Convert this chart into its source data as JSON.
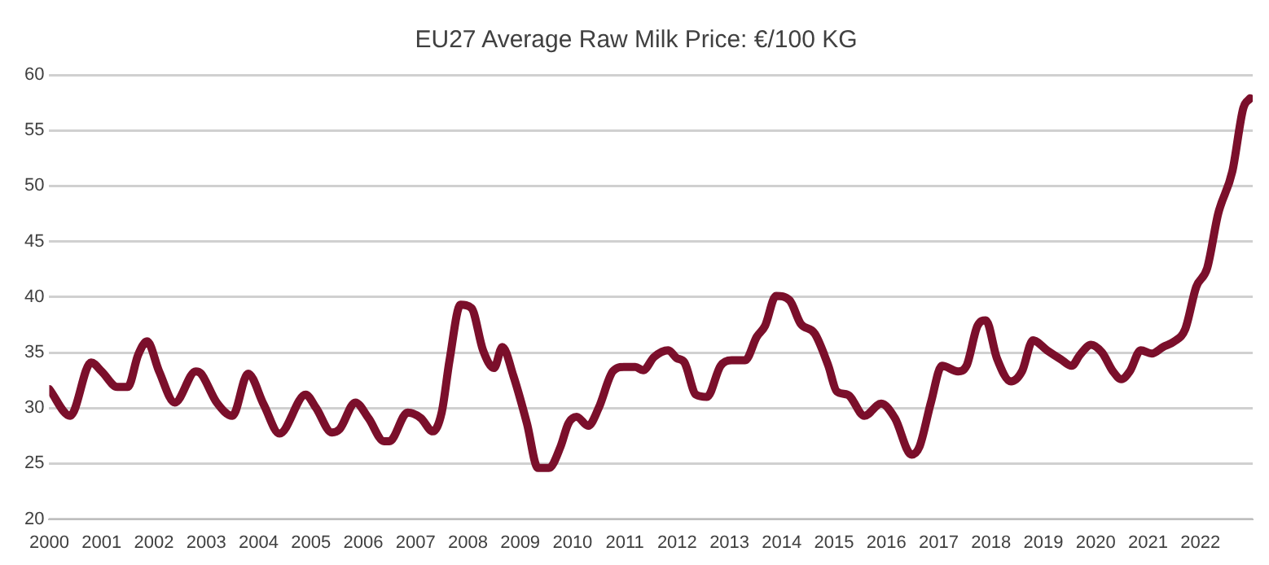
{
  "chart_data": {
    "type": "line",
    "title": "EU27 Average Raw Milk Price: €/100 KG",
    "x": [
      2000.0,
      2000.4,
      2000.8,
      2001.0,
      2001.3,
      2001.5,
      2001.7,
      2001.87,
      2002.1,
      2002.4,
      2002.8,
      2002.9,
      2003.2,
      2003.5,
      2003.8,
      2004.1,
      2004.4,
      2004.9,
      2005.1,
      2005.4,
      2005.55,
      2005.85,
      2006.1,
      2006.4,
      2006.5,
      2006.85,
      2007.1,
      2007.33,
      2007.5,
      2007.65,
      2007.86,
      2008.07,
      2008.29,
      2008.5,
      2008.66,
      2008.87,
      2009.13,
      2009.34,
      2009.55,
      2009.77,
      2009.92,
      2010.08,
      2010.3,
      2010.5,
      2010.77,
      2010.98,
      2011.2,
      2011.35,
      2011.56,
      2011.83,
      2011.99,
      2012.14,
      2012.36,
      2012.57,
      2012.83,
      2013.04,
      2013.3,
      2013.52,
      2013.68,
      2013.89,
      2014.15,
      2014.36,
      2014.63,
      2014.89,
      2015.05,
      2015.26,
      2015.58,
      2015.9,
      2016.16,
      2016.48,
      2016.63,
      2016.85,
      2017.06,
      2017.37,
      2017.53,
      2017.74,
      2017.9,
      2018.11,
      2018.38,
      2018.59,
      2018.8,
      2019.07,
      2019.33,
      2019.54,
      2019.7,
      2019.91,
      2020.12,
      2020.33,
      2020.49,
      2020.65,
      2020.86,
      2021.07,
      2021.29,
      2021.5,
      2021.71,
      2021.92,
      2022.13,
      2022.34,
      2022.61,
      2022.82,
      2022.95
    ],
    "series": [
      {
        "color": "#7b0f2b",
        "values": [
          31.7,
          29.3,
          34.1,
          33.3,
          31.9,
          31.9,
          34.8,
          36.0,
          33.3,
          30.5,
          33.3,
          33.1,
          30.5,
          29.3,
          33.1,
          30.3,
          27.7,
          31.2,
          30.0,
          27.8,
          28.1,
          30.5,
          29.1,
          27.0,
          27.0,
          29.6,
          29.1,
          27.9,
          29.6,
          34.3,
          39.3,
          39.0,
          35.2,
          33.6,
          35.5,
          32.9,
          28.6,
          24.6,
          24.6,
          26.5,
          28.6,
          29.2,
          28.4,
          30.0,
          33.3,
          33.7,
          33.7,
          33.4,
          34.6,
          35.2,
          34.5,
          34.1,
          31.2,
          31.0,
          33.8,
          34.3,
          34.3,
          36.4,
          37.4,
          40.1,
          39.7,
          37.6,
          36.7,
          33.8,
          31.5,
          31.2,
          29.3,
          30.4,
          29.1,
          25.8,
          26.5,
          30.5,
          33.8,
          33.3,
          33.8,
          37.4,
          37.9,
          34.5,
          32.4,
          33.3,
          36.1,
          35.2,
          34.4,
          33.8,
          34.8,
          35.7,
          35.0,
          33.3,
          32.6,
          33.3,
          35.2,
          34.9,
          35.5,
          36.0,
          37.1,
          40.9,
          42.6,
          47.5,
          51.3,
          57.0,
          57.9
        ]
      }
    ],
    "xlim": [
      2000,
      2023
    ],
    "xticks": [
      2000,
      2001,
      2002,
      2003,
      2004,
      2005,
      2006,
      2007,
      2008,
      2009,
      2010,
      2011,
      2012,
      2013,
      2014,
      2015,
      2016,
      2017,
      2018,
      2019,
      2020,
      2021,
      2022
    ],
    "ylim": [
      20,
      60
    ],
    "yticks": [
      20,
      25,
      30,
      35,
      40,
      45,
      50,
      55,
      60
    ],
    "grid": "y",
    "legend": false,
    "marker": "none",
    "line_style": "solid"
  }
}
